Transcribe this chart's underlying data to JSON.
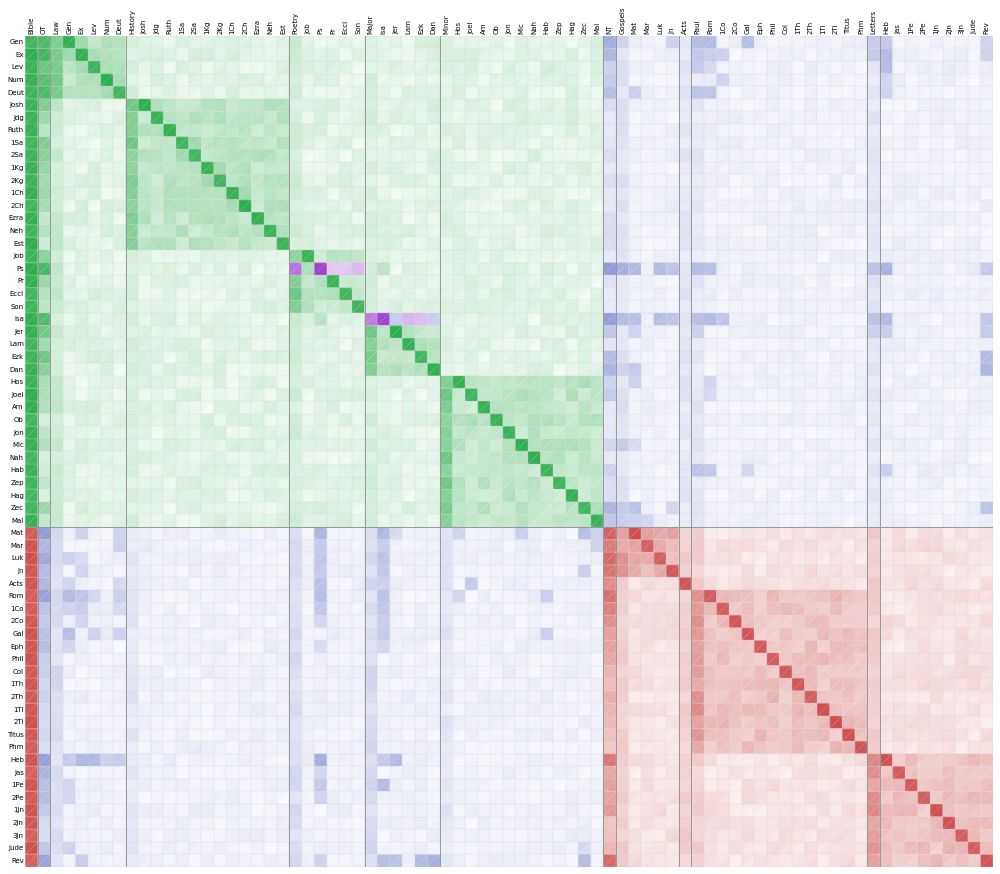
{
  "x_labels": [
    "Bible",
    "OT",
    "Law",
    "Gen",
    "Ex",
    "Lev",
    "Num",
    "Deut",
    "History",
    "Josh",
    "Jdg",
    "Ruth",
    "1Sa",
    "2Sa",
    "1Kg",
    "2Kg",
    "1Ch",
    "2Ch",
    "Ezra",
    "Neh",
    "Est",
    "Poetry",
    "Job",
    "Ps",
    "Pr",
    "Eccl",
    "Son",
    "Major",
    "Isa",
    "Jer",
    "Lam",
    "Ezk",
    "Dan",
    "Minor",
    "Hos",
    "Joel",
    "Am",
    "Ob",
    "Jon",
    "Mic",
    "Nah",
    "Hab",
    "Zep",
    "Hag",
    "Zec",
    "Mal",
    "NT",
    "Gospels",
    "Mat",
    "Mar",
    "Luk",
    "Jn",
    "Acts",
    "Paul",
    "Rom",
    "1Co",
    "2Co",
    "Gal",
    "Eph",
    "Phil",
    "Col",
    "1Th",
    "2Th",
    "1Ti",
    "2Ti",
    "Titus",
    "Phm",
    "Letters",
    "Heb",
    "Jas",
    "1Pe",
    "2Pe",
    "1Jn",
    "2Jn",
    "3Jn",
    "Jude",
    "Rev"
  ],
  "y_labels": [
    "Gen",
    "Ex",
    "Lev",
    "Num",
    "Deut",
    "Josh",
    "Jdg",
    "Ruth",
    "1Sa",
    "2Sa",
    "1Kg",
    "2Kg",
    "1Ch",
    "2Ch",
    "Ezra",
    "Neh",
    "Est",
    "Job",
    "Ps",
    "Pr",
    "Eccl",
    "Son",
    "Isa",
    "Jer",
    "Lam",
    "Ezk",
    "Dan",
    "Hos",
    "Joel",
    "Am",
    "Ob",
    "Jon",
    "Mic",
    "Nah",
    "Hab",
    "Zep",
    "Hag",
    "Zec",
    "Mal",
    "Mat",
    "Mar",
    "Luk",
    "Jn",
    "Acts",
    "Rom",
    "1Co",
    "2Co",
    "Gal",
    "Eph",
    "Phil",
    "Col",
    "1Th",
    "2Th",
    "1Ti",
    "2Ti",
    "Titus",
    "Phm",
    "Heb",
    "Jas",
    "1Pe",
    "2Pe",
    "1Jn",
    "2Jn",
    "3Jn",
    "Jude",
    "Rev"
  ],
  "bg_color": "#ffffff",
  "green_color": "#22aa44",
  "blue_color": "#4455bb",
  "red_color": "#cc4444",
  "purple_color": "#9933cc",
  "figsize": [
    10.0,
    8.74
  ],
  "dpi": 100,
  "ot_books": [
    "Gen",
    "Ex",
    "Lev",
    "Num",
    "Deut",
    "Josh",
    "Jdg",
    "Ruth",
    "1Sa",
    "2Sa",
    "1Kg",
    "2Kg",
    "1Ch",
    "2Ch",
    "Ezra",
    "Neh",
    "Est",
    "Job",
    "Ps",
    "Pr",
    "Eccl",
    "Son",
    "Isa",
    "Jer",
    "Lam",
    "Ezk",
    "Dan",
    "Hos",
    "Joel",
    "Am",
    "Ob",
    "Jon",
    "Mic",
    "Nah",
    "Hab",
    "Zep",
    "Hag",
    "Zec",
    "Mal"
  ],
  "nt_books": [
    "Mat",
    "Mar",
    "Luk",
    "Jn",
    "Acts",
    "Rom",
    "1Co",
    "2Co",
    "Gal",
    "Eph",
    "Phil",
    "Col",
    "1Th",
    "2Th",
    "1Ti",
    "2Ti",
    "Titus",
    "Phm",
    "Heb",
    "Jas",
    "1Pe",
    "2Pe",
    "1Jn",
    "2Jn",
    "3Jn",
    "Jude",
    "Rev"
  ],
  "ot_sections": [
    "OT",
    "Law",
    "History",
    "Poetry",
    "Major",
    "Minor"
  ],
  "nt_sections": [
    "NT",
    "Gospels",
    "Paul",
    "Letters",
    "Acts"
  ],
  "book_section": {
    "Gen": "Law",
    "Ex": "Law",
    "Lev": "Law",
    "Num": "Law",
    "Deut": "Law",
    "Josh": "History",
    "Jdg": "History",
    "Ruth": "History",
    "1Sa": "History",
    "2Sa": "History",
    "1Kg": "History",
    "2Kg": "History",
    "1Ch": "History",
    "2Ch": "History",
    "Ezra": "History",
    "Neh": "History",
    "Est": "History",
    "Job": "Poetry",
    "Ps": "Poetry",
    "Pr": "Poetry",
    "Eccl": "Poetry",
    "Son": "Poetry",
    "Isa": "Major",
    "Jer": "Major",
    "Lam": "Major",
    "Ezk": "Major",
    "Dan": "Major",
    "Hos": "Minor",
    "Joel": "Minor",
    "Am": "Minor",
    "Ob": "Minor",
    "Jon": "Minor",
    "Mic": "Minor",
    "Nah": "Minor",
    "Hab": "Minor",
    "Zep": "Minor",
    "Hag": "Minor",
    "Zec": "Minor",
    "Mal": "Minor",
    "Mat": "Gospels",
    "Mar": "Gospels",
    "Luk": "Gospels",
    "Jn": "Gospels",
    "Acts": "Acts",
    "Rom": "Paul",
    "1Co": "Paul",
    "2Co": "Paul",
    "Gal": "Paul",
    "Eph": "Paul",
    "Phil": "Paul",
    "Col": "Paul",
    "1Th": "Paul",
    "2Th": "Paul",
    "1Ti": "Paul",
    "2Ti": "Paul",
    "Titus": "Paul",
    "Phm": "Paul",
    "Heb": "Letters",
    "Jas": "Letters",
    "1Pe": "Letters",
    "2Pe": "Letters",
    "1Jn": "Letters",
    "2Jn": "Letters",
    "3Jn": "Letters",
    "Jude": "Letters",
    "Rev": "Letters"
  }
}
